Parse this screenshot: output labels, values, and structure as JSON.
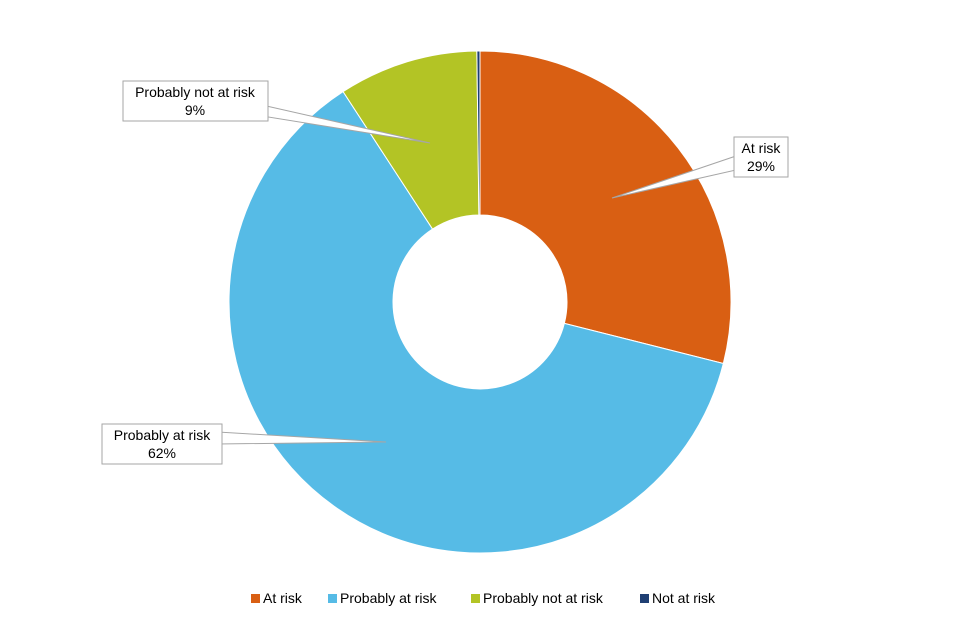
{
  "chart_data": {
    "type": "pie",
    "variant": "donut",
    "title": "",
    "categories": [
      "At risk",
      "Probably at risk",
      "Probably not at risk",
      "Not at risk"
    ],
    "values": [
      29,
      62,
      9,
      0.2
    ],
    "data_labels": [
      {
        "name": "At risk",
        "value": "29%"
      },
      {
        "name": "Probably at risk",
        "value": "62%"
      },
      {
        "name": "Probably not at risk",
        "value": "9%"
      }
    ],
    "colors": [
      "#D95F13",
      "#56BBE6",
      "#B3C425",
      "#1F3F73"
    ],
    "legend": {
      "position": "bottom",
      "entries": [
        "At risk",
        "Probably at risk",
        "Probably not at risk",
        "Not at risk"
      ]
    }
  }
}
